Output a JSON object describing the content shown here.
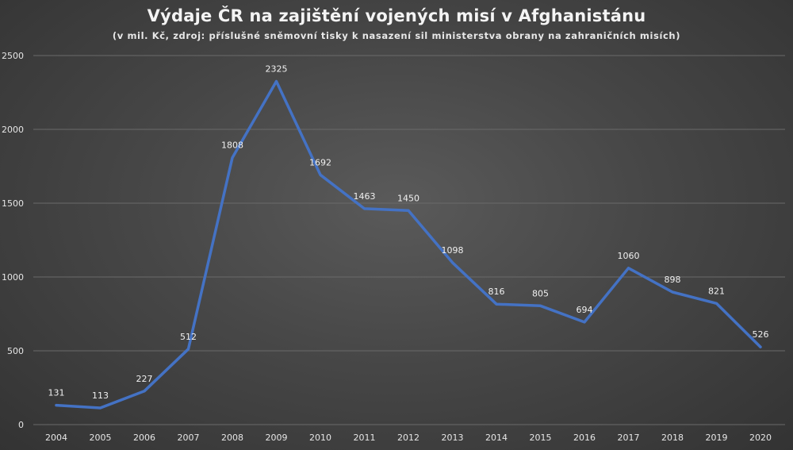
{
  "chart_data": {
    "type": "line",
    "title": "Výdaje ČR na zajištění vojených misí v Afghanistánu",
    "subtitle": "(v mil. Kč, zdroj: příslušné sněmovní tisky k nasazení sil ministerstva obrany na zahraničních misích)",
    "xlabel": "",
    "ylabel": "",
    "categories": [
      "2004",
      "2005",
      "2006",
      "2007",
      "2008",
      "2009",
      "2010",
      "2011",
      "2012",
      "2013",
      "2014",
      "2015",
      "2016",
      "2017",
      "2018",
      "2019",
      "2020"
    ],
    "series": [
      {
        "values": [
          131,
          113,
          227,
          512,
          1808,
          2325,
          1692,
          1463,
          1450,
          1098,
          816,
          805,
          694,
          1060,
          898,
          821,
          526
        ],
        "color": "#4472c4"
      }
    ],
    "data_labels": [
      "131",
      "113",
      "227",
      "512",
      "1808",
      "2325",
      "1692",
      "1463",
      "1450",
      "1098",
      "816",
      "805",
      "694",
      "1060",
      "898",
      "821",
      "526"
    ],
    "ylim": [
      0,
      2500
    ],
    "yticks": [
      0,
      500,
      1000,
      1500,
      2000,
      2500
    ],
    "ytick_labels": [
      "0",
      "500",
      "1000",
      "1500",
      "2000",
      "2500"
    ],
    "grid": true,
    "legend": "none",
    "colors": {
      "line": "#4472c4",
      "grid": "#6a6a6a",
      "text": "#f2f2f2"
    }
  }
}
